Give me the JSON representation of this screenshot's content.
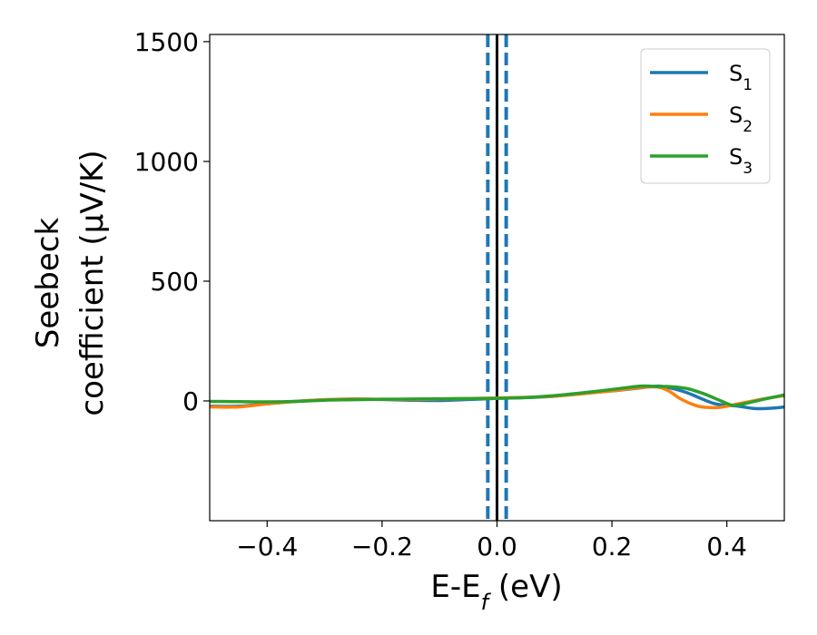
{
  "chart_data": {
    "type": "line",
    "xlabel_main": "E-E",
    "xlabel_sub": "f",
    "xlabel_unit": " (eV)",
    "ylabel_line1": "Seebeck",
    "ylabel_line2": "coefficient  (μV/K)",
    "xlim": [
      -0.5,
      0.5
    ],
    "ylim": [
      -500,
      1530
    ],
    "xticks": [
      -0.4,
      -0.2,
      0.0,
      0.2,
      0.4
    ],
    "xtick_labels": [
      "−0.4",
      "−0.2",
      "0.0",
      "0.2",
      "0.4"
    ],
    "yticks": [
      0,
      500,
      1000,
      1500
    ],
    "ytick_labels": [
      "0",
      "500",
      "1000",
      "1500"
    ],
    "grid": false,
    "legend_position": "top-right",
    "vertical_lines": [
      {
        "x": 0.0,
        "style": "solid",
        "color": "#000000"
      },
      {
        "x": -0.016,
        "style": "dashed",
        "color": "#1f77b4"
      },
      {
        "x": 0.016,
        "style": "dashed",
        "color": "#1f77b4"
      }
    ],
    "series": [
      {
        "name": "S",
        "subscript": "1",
        "color": "#1f77b4",
        "x": [
          -0.5,
          -0.45,
          -0.4,
          -0.35,
          -0.3,
          -0.25,
          -0.2,
          -0.15,
          -0.1,
          -0.05,
          0.0,
          0.05,
          0.1,
          0.15,
          0.2,
          0.25,
          0.28,
          0.3,
          0.33,
          0.36,
          0.38,
          0.4,
          0.42,
          0.45,
          0.48,
          0.5
        ],
        "y": [
          -22,
          -22,
          -12,
          -2,
          5,
          8,
          6,
          3,
          2,
          6,
          11,
          14,
          20,
          32,
          42,
          55,
          62,
          55,
          35,
          5,
          -12,
          -18,
          -22,
          -32,
          -30,
          -25
        ]
      },
      {
        "name": "S",
        "subscript": "2",
        "color": "#ff7f0e",
        "x": [
          -0.5,
          -0.45,
          -0.4,
          -0.35,
          -0.3,
          -0.25,
          -0.2,
          -0.15,
          -0.1,
          -0.05,
          0.0,
          0.05,
          0.1,
          0.15,
          0.2,
          0.25,
          0.28,
          0.3,
          0.32,
          0.35,
          0.38,
          0.4,
          0.42,
          0.45,
          0.48,
          0.5
        ],
        "y": [
          -25,
          -25,
          -12,
          -2,
          5,
          8,
          7,
          6,
          8,
          10,
          12,
          15,
          20,
          30,
          42,
          56,
          58,
          40,
          8,
          -22,
          -28,
          -22,
          -12,
          2,
          15,
          22
        ]
      },
      {
        "name": "S",
        "subscript": "3",
        "color": "#2ca02c",
        "x": [
          -0.5,
          -0.45,
          -0.4,
          -0.35,
          -0.3,
          -0.25,
          -0.2,
          -0.15,
          -0.1,
          -0.05,
          0.0,
          0.05,
          0.1,
          0.15,
          0.2,
          0.25,
          0.28,
          0.3,
          0.33,
          0.36,
          0.39,
          0.41,
          0.43,
          0.46,
          0.5
        ],
        "y": [
          -2,
          -3,
          -4,
          -2,
          3,
          5,
          7,
          8,
          9,
          10,
          11,
          14,
          22,
          34,
          48,
          62,
          60,
          60,
          52,
          30,
          0,
          -18,
          -12,
          5,
          25
        ]
      }
    ]
  }
}
